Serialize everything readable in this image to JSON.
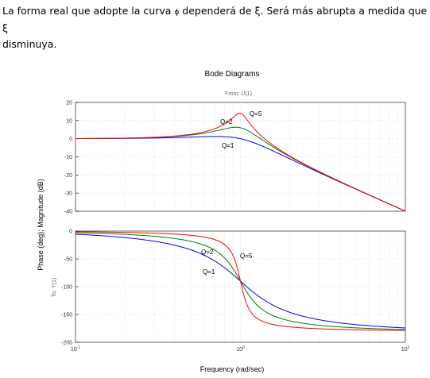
{
  "document": {
    "line1": "La forma real que adopte la curva ",
    "curve_symbol": "ϕ",
    "line1b": " dependerá de ξ. Será más abrupta a medida que ξ",
    "line2": "disminuya."
  },
  "chart_data": {
    "type": "line",
    "title": "Bode Diagrams",
    "subtitle": "From: U(1)",
    "xlabel": "Frequency (rad/sec)",
    "ylabel": "Phase (deg); Magnitude (dB)",
    "output_label": "To: Y(1)",
    "x_scale": "log",
    "xlim": [
      0.1,
      10
    ],
    "x_ticks": [
      {
        "base": "10",
        "exp": "-1"
      },
      {
        "base": "10",
        "exp": "0"
      },
      {
        "base": "10",
        "exp": "1"
      }
    ],
    "magnitude": {
      "ylim": [
        -40,
        20
      ],
      "yticks": [
        20,
        10,
        0,
        -10,
        -20,
        -30,
        -40
      ],
      "series": [
        {
          "name": "Q=1",
          "color": "#0000ff",
          "Q": 1
        },
        {
          "name": "Q=2",
          "color": "#008000",
          "Q": 2
        },
        {
          "name": "Q=5",
          "color": "#ff0000",
          "Q": 5
        }
      ]
    },
    "phase": {
      "ylim": [
        -200,
        0
      ],
      "yticks": [
        0,
        -50,
        -100,
        -150,
        -200
      ],
      "series": [
        {
          "name": "Q=1",
          "color": "#0000ff",
          "Q": 1
        },
        {
          "name": "Q=2",
          "color": "#008000",
          "Q": 2
        },
        {
          "name": "Q=5",
          "color": "#ff0000",
          "Q": 5
        }
      ]
    },
    "annotations": {
      "magnitude": [
        "Q=5",
        "Q=2",
        "Q=1"
      ],
      "phase": [
        "Q=2",
        "Q=5",
        "Q=1"
      ]
    }
  }
}
